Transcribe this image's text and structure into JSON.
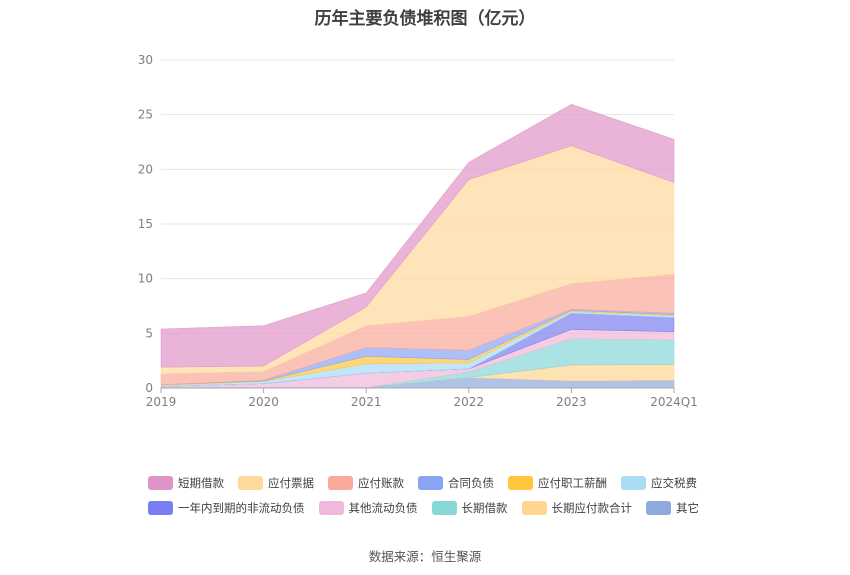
{
  "chart_data": {
    "type": "area",
    "stacked": true,
    "title": "历年主要负债堆积图（亿元）",
    "x": [
      "2019",
      "2020",
      "2021",
      "2022",
      "2023",
      "2024Q1"
    ],
    "ylim": [
      0,
      30
    ],
    "yticks": [
      0,
      5,
      10,
      15,
      20,
      25,
      30
    ],
    "grid": true,
    "legend_position": "bottom",
    "series": [
      {
        "name": "其它",
        "color": "#8eaadb",
        "values": [
          0.05,
          0.05,
          0.05,
          0.95,
          0.65,
          0.7
        ]
      },
      {
        "name": "长期应付款合计",
        "color": "#ffd591",
        "values": [
          0,
          0,
          0,
          0,
          1.45,
          1.45
        ]
      },
      {
        "name": "长期借款",
        "color": "#87d6d8",
        "values": [
          0,
          0,
          0,
          0.5,
          2.4,
          2.25
        ]
      },
      {
        "name": "其他流动负债",
        "color": "#f0b8da",
        "values": [
          0.1,
          0.35,
          1.3,
          0.3,
          0.85,
          0.75
        ]
      },
      {
        "name": "一年内到期的非流动负债",
        "color": "#7b7ef0",
        "values": [
          0,
          0,
          0,
          0,
          1.5,
          1.3
        ]
      },
      {
        "name": "应交税费",
        "color": "#a8dcf5",
        "values": [
          0.1,
          0.2,
          0.85,
          0.55,
          0.15,
          0.15
        ]
      },
      {
        "name": "应付职工薪酬",
        "color": "#ffc53d",
        "values": [
          0.05,
          0.05,
          0.7,
          0.3,
          0.1,
          0.1
        ]
      },
      {
        "name": "合同负债",
        "color": "#8aa4f5",
        "values": [
          0,
          0.05,
          0.8,
          0.85,
          0.1,
          0.15
        ]
      },
      {
        "name": "应付账款",
        "color": "#f9a89a",
        "values": [
          1.0,
          0.8,
          2.0,
          3.1,
          2.35,
          3.55
        ]
      },
      {
        "name": "应付票据",
        "color": "#ffd89b",
        "values": [
          0.6,
          0.5,
          1.7,
          12.5,
          12.6,
          8.4
        ]
      },
      {
        "name": "短期借款",
        "color": "#df94c8",
        "values": [
          3.5,
          3.7,
          1.3,
          1.6,
          3.8,
          3.95
        ]
      }
    ]
  },
  "legend": {
    "row1": [
      {
        "name": "短期借款",
        "color": "#df94c8"
      },
      {
        "name": "应付票据",
        "color": "#ffd89b"
      },
      {
        "name": "应付账款",
        "color": "#f9a89a"
      },
      {
        "name": "合同负债",
        "color": "#8aa4f5"
      },
      {
        "name": "应付职工薪酬",
        "color": "#ffc53d"
      },
      {
        "name": "应交税费",
        "color": "#a8dcf5"
      }
    ],
    "row2": [
      {
        "name": "一年内到期的非流动负债",
        "color": "#7b7ef0"
      },
      {
        "name": "其他流动负债",
        "color": "#f0b8da"
      },
      {
        "name": "长期借款",
        "color": "#87d6d8"
      },
      {
        "name": "长期应付款合计",
        "color": "#ffd591"
      },
      {
        "name": "其它",
        "color": "#8eaadb"
      }
    ]
  },
  "source": "数据来源：恒生聚源"
}
